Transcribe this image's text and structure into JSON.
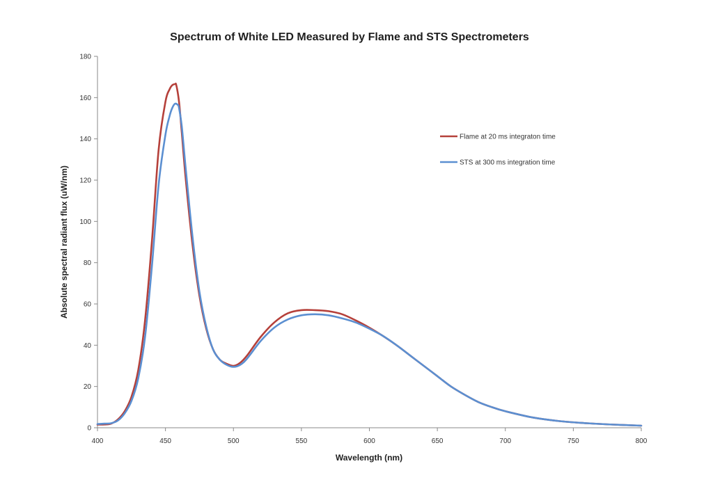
{
  "chart_data": {
    "type": "line",
    "title": "Spectrum of White LED Measured by Flame and STS Spectrometers",
    "xlabel": "Wavelength (nm)",
    "ylabel": "Absolute spectral radiant flux (uW/nm)",
    "xlim": [
      400,
      800
    ],
    "ylim": [
      0,
      180
    ],
    "x_ticks": [
      400,
      450,
      500,
      550,
      600,
      650,
      700,
      750,
      800
    ],
    "y_ticks": [
      0,
      20,
      40,
      60,
      80,
      100,
      120,
      140,
      160,
      180
    ],
    "grid": false,
    "legend_position": "top-right",
    "series": [
      {
        "name": "Flame at 20 ms integraton time",
        "color": "#b5403a",
        "x": [
          400,
          405,
          410,
          415,
          420,
          425,
          430,
          435,
          440,
          445,
          450,
          453,
          455,
          457,
          458,
          460,
          462,
          465,
          470,
          475,
          480,
          485,
          490,
          495,
          500,
          505,
          510,
          520,
          530,
          540,
          550,
          560,
          570,
          580,
          590,
          600,
          610,
          620,
          630,
          640,
          650,
          660,
          670,
          680,
          690,
          700,
          720,
          740,
          760,
          780,
          800
        ],
        "y": [
          1.5,
          1.6,
          2.0,
          4,
          8,
          15,
          28,
          52,
          90,
          135,
          158,
          164,
          166,
          166.5,
          166,
          158,
          143,
          120,
          88,
          64,
          48,
          38,
          33,
          31,
          30,
          31.5,
          35,
          44,
          51,
          55.5,
          57,
          57,
          56.5,
          55,
          52,
          48.5,
          44.5,
          40,
          35,
          30,
          25,
          20,
          16,
          12.5,
          10,
          8,
          5,
          3.2,
          2.2,
          1.5,
          1.0
        ]
      },
      {
        "name": "STS at 300 ms integration time",
        "color": "#5b8fd1",
        "x": [
          400,
          405,
          410,
          415,
          420,
          425,
          430,
          435,
          440,
          445,
          450,
          453,
          455,
          457,
          459,
          460,
          462,
          465,
          470,
          475,
          480,
          485,
          490,
          495,
          500,
          505,
          510,
          520,
          530,
          540,
          550,
          560,
          570,
          580,
          590,
          600,
          610,
          620,
          630,
          640,
          650,
          660,
          670,
          680,
          690,
          700,
          720,
          740,
          760,
          780,
          800
        ],
        "y": [
          1.8,
          2.0,
          2.2,
          3.5,
          7,
          13,
          24,
          44,
          78,
          118,
          142,
          151,
          155,
          157,
          156.5,
          155,
          146,
          125,
          92,
          66,
          49,
          38,
          33,
          30.5,
          29.5,
          30.5,
          33.5,
          42,
          48.5,
          52.5,
          54.5,
          55,
          54.5,
          53,
          51,
          48,
          44.5,
          40,
          35,
          30,
          25,
          20,
          16,
          12.5,
          10,
          8,
          5,
          3.2,
          2.2,
          1.5,
          1.0
        ]
      }
    ]
  }
}
